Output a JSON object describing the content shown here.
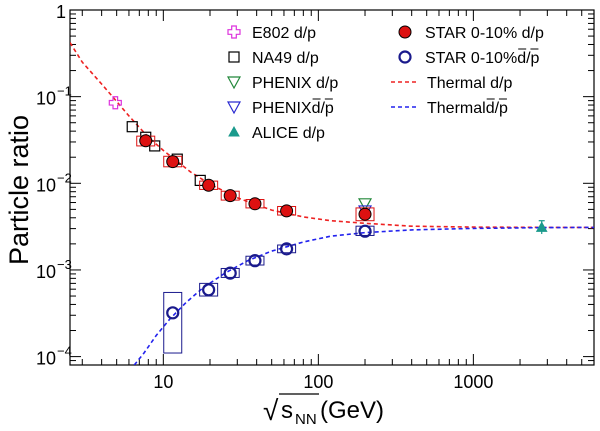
{
  "chart_data": {
    "type": "scatter",
    "title": "",
    "xlabel_root": "√",
    "xlabel_s": "s",
    "xlabel_sub": "NN",
    "xlabel_unit": " (GeV)",
    "ylabel": "Particle ratio",
    "x_scale": "log",
    "y_scale": "log",
    "xlim": [
      2.5,
      6000
    ],
    "ylim": [
      8e-05,
      1
    ],
    "x_ticks": [
      {
        "value": 10,
        "label": "10"
      },
      {
        "value": 100,
        "label": "100"
      },
      {
        "value": 1000,
        "label": "1000"
      }
    ],
    "y_ticks": [
      {
        "value": 1,
        "label": "1",
        "exp": ""
      },
      {
        "value": 0.1,
        "label": "10",
        "exp": "−1"
      },
      {
        "value": 0.01,
        "label": "10",
        "exp": "−2"
      },
      {
        "value": 0.001,
        "label": "10",
        "exp": "−3"
      },
      {
        "value": 0.0001,
        "label": "10",
        "exp": "−4"
      }
    ],
    "legend_position": "top-right",
    "series": [
      {
        "name": "E802 d/p",
        "marker": "open-cross",
        "color": "#dd33dd",
        "points": [
          [
            4.9,
            0.085
          ]
        ]
      },
      {
        "name": "NA49 d/p",
        "marker": "open-square",
        "color": "#000000",
        "points": [
          [
            6.3,
            0.045
          ],
          [
            7.7,
            0.034
          ],
          [
            8.8,
            0.027
          ],
          [
            12.3,
            0.019
          ],
          [
            17.3,
            0.0108
          ]
        ]
      },
      {
        "name": "PHENIX d/p",
        "marker": "open-triangle-down",
        "color": "#22883a",
        "points": [
          [
            200,
            0.0058
          ]
        ]
      },
      {
        "name": "PHENIX d̄/p̄",
        "name_bar": "d/p",
        "marker": "open-triangle-down",
        "color": "#2a2ad0",
        "points": [
          [
            200,
            0.0048
          ]
        ]
      },
      {
        "name": "ALICE d/p",
        "marker": "filled-triangle-up",
        "color": "#1a9a8c",
        "points": [
          [
            2760,
            0.0031
          ]
        ],
        "yerr": [
          [
            0.0026,
            0.0037
          ]
        ]
      },
      {
        "name": "STAR 0-10% d/p",
        "marker": "filled-circle",
        "color": "#dd1111",
        "points": [
          [
            7.7,
            0.031
          ],
          [
            11.5,
            0.0178
          ],
          [
            19.6,
            0.0095
          ],
          [
            27,
            0.0072
          ],
          [
            39,
            0.0058
          ],
          [
            62.4,
            0.0048
          ],
          [
            200,
            0.0044
          ]
        ],
        "syst_y": [
          [
            0.027,
            0.035
          ],
          [
            0.0155,
            0.0205
          ],
          [
            0.0085,
            0.0106
          ],
          [
            0.0064,
            0.0081
          ],
          [
            0.0052,
            0.0065
          ],
          [
            0.0043,
            0.0054
          ],
          [
            0.0037,
            0.0052
          ]
        ]
      },
      {
        "name": "STAR 0-10% d̄/p̄",
        "name_bar": "d/p",
        "marker": "open-circle",
        "color": "#1a1a8c",
        "points": [
          [
            11.5,
            0.00032
          ],
          [
            19.6,
            0.00059
          ],
          [
            27,
            0.00092
          ],
          [
            39,
            0.00128
          ],
          [
            62.4,
            0.00175
          ],
          [
            200,
            0.0028
          ]
        ],
        "syst_y": [
          [
            0.00011,
            0.00055
          ],
          [
            0.0005,
            0.0007
          ],
          [
            0.00082,
            0.00104
          ],
          [
            0.00114,
            0.00144
          ],
          [
            0.00158,
            0.00194
          ],
          [
            0.0025,
            0.0032
          ]
        ]
      },
      {
        "name": "Thermal d/p",
        "line": "dashed",
        "color": "#ee2222",
        "points": [
          [
            2.5,
            0.42
          ],
          [
            3,
            0.25
          ],
          [
            4,
            0.14
          ],
          [
            5,
            0.088
          ],
          [
            6,
            0.06
          ],
          [
            8,
            0.034
          ],
          [
            10,
            0.024
          ],
          [
            15,
            0.0135
          ],
          [
            20,
            0.0098
          ],
          [
            30,
            0.0068
          ],
          [
            50,
            0.0049
          ],
          [
            80,
            0.0041
          ],
          [
            120,
            0.0037
          ],
          [
            200,
            0.00345
          ],
          [
            400,
            0.0032
          ],
          [
            1000,
            0.00312
          ],
          [
            3000,
            0.0031
          ],
          [
            6000,
            0.0031
          ]
        ]
      },
      {
        "name": "Thermal d̄/p̄",
        "name_bar": "d/p",
        "line": "dashed",
        "color": "#2222ee",
        "points": [
          [
            6.5,
            8e-05
          ],
          [
            7.5,
            0.00011
          ],
          [
            9,
            0.000175
          ],
          [
            11,
            0.00027
          ],
          [
            14,
            0.00042
          ],
          [
            18,
            0.00062
          ],
          [
            25,
            0.00092
          ],
          [
            35,
            0.00128
          ],
          [
            50,
            0.00165
          ],
          [
            80,
            0.0021
          ],
          [
            120,
            0.00245
          ],
          [
            200,
            0.0027
          ],
          [
            400,
            0.0029
          ],
          [
            1000,
            0.00302
          ],
          [
            3000,
            0.00308
          ],
          [
            6000,
            0.0031
          ]
        ]
      }
    ]
  }
}
